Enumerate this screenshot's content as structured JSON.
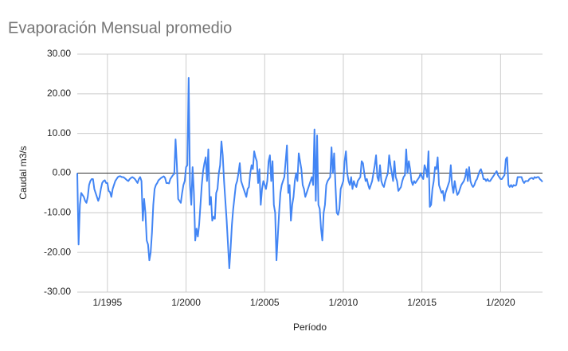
{
  "chart_data": {
    "type": "line",
    "title": "Evaporación Mensual promedio",
    "xlabel": "Período",
    "ylabel": "Caudal m3/s",
    "grid": true,
    "ylim": [
      -30,
      30
    ],
    "yticks": [
      {
        "value": -30,
        "label": "-30.00"
      },
      {
        "value": -20,
        "label": "-20.00"
      },
      {
        "value": -10,
        "label": "-10.00"
      },
      {
        "value": 0,
        "label": "0.00"
      },
      {
        "value": 10,
        "label": "10.00"
      },
      {
        "value": 20,
        "label": "20.00"
      },
      {
        "value": 30,
        "label": "30.00"
      }
    ],
    "xticks": [
      "1/1995",
      "1/2000",
      "1/2005",
      "1/2010",
      "1/2015",
      "1/2020"
    ],
    "x": [
      "2/1993",
      "3/1993",
      "4/1993",
      "5/1993",
      "6/1993",
      "7/1993",
      "8/1993",
      "9/1993",
      "10/1993",
      "11/1993",
      "12/1993",
      "1/1994",
      "2/1994",
      "3/1994",
      "4/1994",
      "5/1994",
      "6/1994",
      "7/1994",
      "8/1994",
      "9/1994",
      "10/1994",
      "11/1994",
      "12/1994",
      "1/1995",
      "2/1995",
      "3/1995",
      "4/1995",
      "5/1995",
      "6/1995",
      "7/1995",
      "8/1995",
      "9/1995",
      "10/1995",
      "11/1995",
      "12/1995",
      "1/1996",
      "2/1996",
      "3/1996",
      "4/1996",
      "5/1996",
      "6/1996",
      "7/1996",
      "8/1996",
      "9/1996",
      "10/1996",
      "11/1996",
      "12/1996",
      "1/1997",
      "2/1997",
      "3/1997",
      "4/1997",
      "5/1997",
      "6/1997",
      "7/1997",
      "8/1997",
      "9/1997",
      "10/1997",
      "11/1997",
      "12/1997",
      "1/1998",
      "2/1998",
      "3/1998",
      "4/1998",
      "5/1998",
      "6/1998",
      "7/1998",
      "8/1998",
      "9/1998",
      "10/1998",
      "11/1998",
      "12/1998",
      "1/1999",
      "2/1999",
      "3/1999",
      "4/1999",
      "5/1999",
      "6/1999",
      "7/1999",
      "8/1999",
      "9/1999",
      "10/1999",
      "11/1999",
      "12/1999",
      "1/2000",
      "2/2000",
      "3/2000",
      "4/2000",
      "5/2000",
      "6/2000",
      "7/2000",
      "8/2000",
      "9/2000",
      "10/2000",
      "11/2000",
      "12/2000",
      "1/2001",
      "2/2001",
      "3/2001",
      "4/2001",
      "5/2001",
      "6/2001",
      "7/2001",
      "8/2001",
      "9/2001",
      "10/2001",
      "11/2001",
      "12/2001",
      "1/2002",
      "2/2002",
      "3/2002",
      "4/2002",
      "5/2002",
      "6/2002",
      "7/2002",
      "8/2002",
      "9/2002",
      "10/2002",
      "11/2002",
      "12/2002",
      "1/2003",
      "2/2003",
      "3/2003",
      "4/2003",
      "5/2003",
      "6/2003",
      "7/2003",
      "8/2003",
      "9/2003",
      "10/2003",
      "11/2003",
      "12/2003",
      "1/2004",
      "2/2004",
      "3/2004",
      "4/2004",
      "5/2004",
      "6/2004",
      "7/2004",
      "8/2004",
      "9/2004",
      "10/2004",
      "11/2004",
      "12/2004",
      "1/2005",
      "2/2005",
      "3/2005",
      "4/2005",
      "5/2005",
      "6/2005",
      "7/2005",
      "8/2005",
      "9/2005",
      "10/2005",
      "11/2005",
      "12/2005",
      "1/2006",
      "2/2006",
      "3/2006",
      "4/2006",
      "5/2006",
      "6/2006",
      "7/2006",
      "8/2006",
      "9/2006",
      "10/2006",
      "11/2006",
      "12/2006",
      "1/2007",
      "2/2007",
      "3/2007",
      "4/2007",
      "5/2007",
      "6/2007",
      "7/2007",
      "8/2007",
      "9/2007",
      "10/2007",
      "11/2007",
      "12/2007",
      "1/2008",
      "2/2008",
      "3/2008",
      "4/2008",
      "5/2008",
      "6/2008",
      "7/2008",
      "8/2008",
      "9/2008",
      "10/2008",
      "11/2008",
      "12/2008",
      "1/2009",
      "2/2009",
      "3/2009",
      "4/2009",
      "5/2009",
      "6/2009",
      "7/2009",
      "8/2009",
      "9/2009",
      "10/2009",
      "11/2009",
      "12/2009",
      "1/2010",
      "2/2010",
      "3/2010",
      "4/2010",
      "5/2010",
      "6/2010",
      "7/2010",
      "8/2010",
      "9/2010",
      "10/2010",
      "11/2010",
      "12/2010",
      "1/2011",
      "2/2011",
      "3/2011",
      "4/2011",
      "5/2011",
      "6/2011",
      "7/2011",
      "8/2011",
      "9/2011",
      "10/2011",
      "11/2011",
      "12/2011",
      "1/2012",
      "2/2012",
      "3/2012",
      "4/2012",
      "5/2012",
      "6/2012",
      "7/2012",
      "8/2012",
      "9/2012",
      "10/2012",
      "11/2012",
      "12/2012",
      "1/2013",
      "2/2013",
      "3/2013",
      "4/2013",
      "5/2013",
      "6/2013",
      "7/2013",
      "8/2013",
      "9/2013",
      "10/2013",
      "11/2013",
      "12/2013",
      "1/2014",
      "2/2014",
      "3/2014",
      "4/2014",
      "5/2014",
      "6/2014",
      "7/2014",
      "8/2014",
      "9/2014",
      "10/2014",
      "11/2014",
      "12/2014",
      "1/2015",
      "2/2015",
      "3/2015",
      "4/2015",
      "5/2015",
      "6/2015",
      "7/2015",
      "8/2015",
      "9/2015",
      "10/2015",
      "11/2015",
      "12/2015",
      "1/2016",
      "2/2016",
      "3/2016",
      "4/2016",
      "5/2016",
      "6/2016",
      "7/2016",
      "8/2016",
      "9/2016",
      "10/2016",
      "11/2016",
      "12/2016",
      "1/2017",
      "2/2017",
      "3/2017",
      "4/2017",
      "5/2017",
      "6/2017",
      "7/2017",
      "8/2017",
      "9/2017",
      "10/2017",
      "11/2017",
      "12/2017",
      "1/2018",
      "2/2018",
      "3/2018",
      "4/2018",
      "5/2018",
      "6/2018",
      "7/2018",
      "8/2018",
      "9/2018",
      "10/2018",
      "11/2018",
      "12/2018",
      "1/2019",
      "2/2019",
      "3/2019",
      "4/2019",
      "5/2019",
      "6/2019",
      "7/2019",
      "8/2019",
      "9/2019",
      "10/2019",
      "11/2019",
      "12/2019",
      "1/2020",
      "2/2020",
      "3/2020",
      "4/2020",
      "5/2020",
      "6/2020",
      "7/2020",
      "8/2020",
      "9/2020",
      "10/2020",
      "11/2020",
      "12/2020",
      "1/2021",
      "2/2021",
      "3/2021",
      "4/2021",
      "5/2021",
      "6/2021",
      "7/2021",
      "8/2021",
      "9/2021",
      "10/2021",
      "11/2021",
      "12/2021",
      "1/2022",
      "2/2022",
      "3/2022",
      "4/2022",
      "5/2022",
      "6/2022",
      "7/2022",
      "8/2022",
      "9/2022"
    ],
    "series": [
      {
        "color": "#4285f4",
        "values": [
          0,
          -18,
          -8,
          -5,
          -5.5,
          -6,
          -7,
          -7.5,
          -6,
          -3,
          -2,
          -1.5,
          -1.5,
          -4,
          -5,
          -6,
          -7,
          -6,
          -4,
          -2.5,
          -2,
          -1.8,
          -2.5,
          -2.5,
          -4.5,
          -4.8,
          -6,
          -4,
          -3,
          -2,
          -1.5,
          -1,
          -0.8,
          -0.8,
          -1,
          -1,
          -1.2,
          -1.5,
          -1.8,
          -2,
          -1.5,
          -1.2,
          -1,
          -1.2,
          -1.5,
          -2,
          -2.5,
          -1.5,
          -1,
          -2,
          -12,
          -6.5,
          -10,
          -17,
          -18,
          -22,
          -20,
          -15,
          -8,
          -4,
          -3,
          -2.5,
          -1.8,
          -1.5,
          -1.2,
          -1,
          -0.8,
          -1.2,
          -2.5,
          -2.5,
          -2.6,
          -1.5,
          -1,
          -0.5,
          -0.2,
          8.5,
          2,
          -6.5,
          -7,
          -7.5,
          -5,
          -3,
          -2,
          1.5,
          2,
          24,
          -3,
          -8,
          1.5,
          -5,
          -17,
          -14,
          -16,
          -13,
          -8,
          -3,
          0.5,
          2.5,
          4,
          -2,
          6,
          -8,
          -6,
          -12,
          -11,
          -11.5,
          -5,
          -4,
          0,
          2,
          8,
          4.5,
          -2,
          -7,
          -12,
          -18,
          -24,
          -19,
          -13,
          -9,
          -6,
          -3,
          -2,
          0,
          2.5,
          -2,
          -3,
          -4,
          -5,
          -6,
          -4,
          -3.5,
          0,
          2,
          1,
          5.5,
          4,
          3,
          -2.5,
          1,
          -8,
          -4,
          -2,
          -3,
          -4,
          -2,
          3,
          4.5,
          -2,
          3,
          -8,
          -10,
          -22,
          -16,
          -10,
          -5,
          -3,
          -2,
          -1,
          3,
          7,
          -5,
          -3,
          -12,
          -8,
          -6,
          -2,
          0,
          -2,
          5,
          3,
          1,
          -3,
          -4,
          -6,
          -5,
          -4,
          -3,
          -2,
          -1,
          -3,
          11,
          -7,
          9.5,
          -8,
          -9,
          -14,
          -17,
          -10,
          -8,
          -3,
          -2,
          -1.5,
          -1,
          6.5,
          0,
          5,
          -3,
          -10,
          -10.5,
          -9,
          -4,
          -3,
          -2,
          3,
          5.5,
          0,
          -2,
          -3,
          -1,
          -4,
          -2,
          -3,
          -3.5,
          -2,
          -1.5,
          -1,
          3,
          2.5,
          0,
          -2,
          -1.5,
          -3,
          -4,
          -3,
          -2,
          0,
          2,
          4.5,
          -1,
          -2,
          2,
          -2,
          -3,
          -3.5,
          -2,
          -1,
          0,
          4.5,
          2,
          0,
          -2,
          3,
          -1,
          -2,
          -4.5,
          -4,
          -3.5,
          -2,
          -1,
          -0.5,
          6,
          0,
          3,
          1,
          -2,
          -3,
          -2,
          -2.5,
          -2,
          -1.5,
          -1,
          0,
          -1,
          -1.5,
          2,
          1,
          -1,
          5.5,
          -8.5,
          -8,
          -4,
          -2,
          1.5,
          1,
          4,
          -3,
          -4,
          -5,
          -4.5,
          -7,
          -5,
          -4,
          -3,
          -2,
          2,
          -3,
          -5,
          -2,
          -4,
          -5.5,
          -5,
          -4,
          -3,
          -2.5,
          -2,
          -1,
          1,
          -2,
          1.5,
          -2,
          -3,
          -3.5,
          -3,
          -2,
          -1.5,
          -0.5,
          0.5,
          1,
          0,
          -1.5,
          -1.5,
          -2,
          -1.5,
          -2,
          -2,
          -1.5,
          -1,
          -0.5,
          0,
          0.5,
          -0.5,
          -1,
          -1.5,
          -1.5,
          -1,
          -0.5,
          3.5,
          4,
          -3,
          -3.5,
          -3,
          -3.5,
          -3,
          -3.2,
          -3,
          -1,
          -1,
          -1,
          -1,
          -2,
          -2.5,
          -2,
          -2,
          -2,
          -1.5,
          -1.3,
          -1.2,
          -1.5,
          -1,
          -1.2,
          -1,
          -1,
          -1.5,
          -1.8,
          -2.2
        ]
      }
    ]
  }
}
